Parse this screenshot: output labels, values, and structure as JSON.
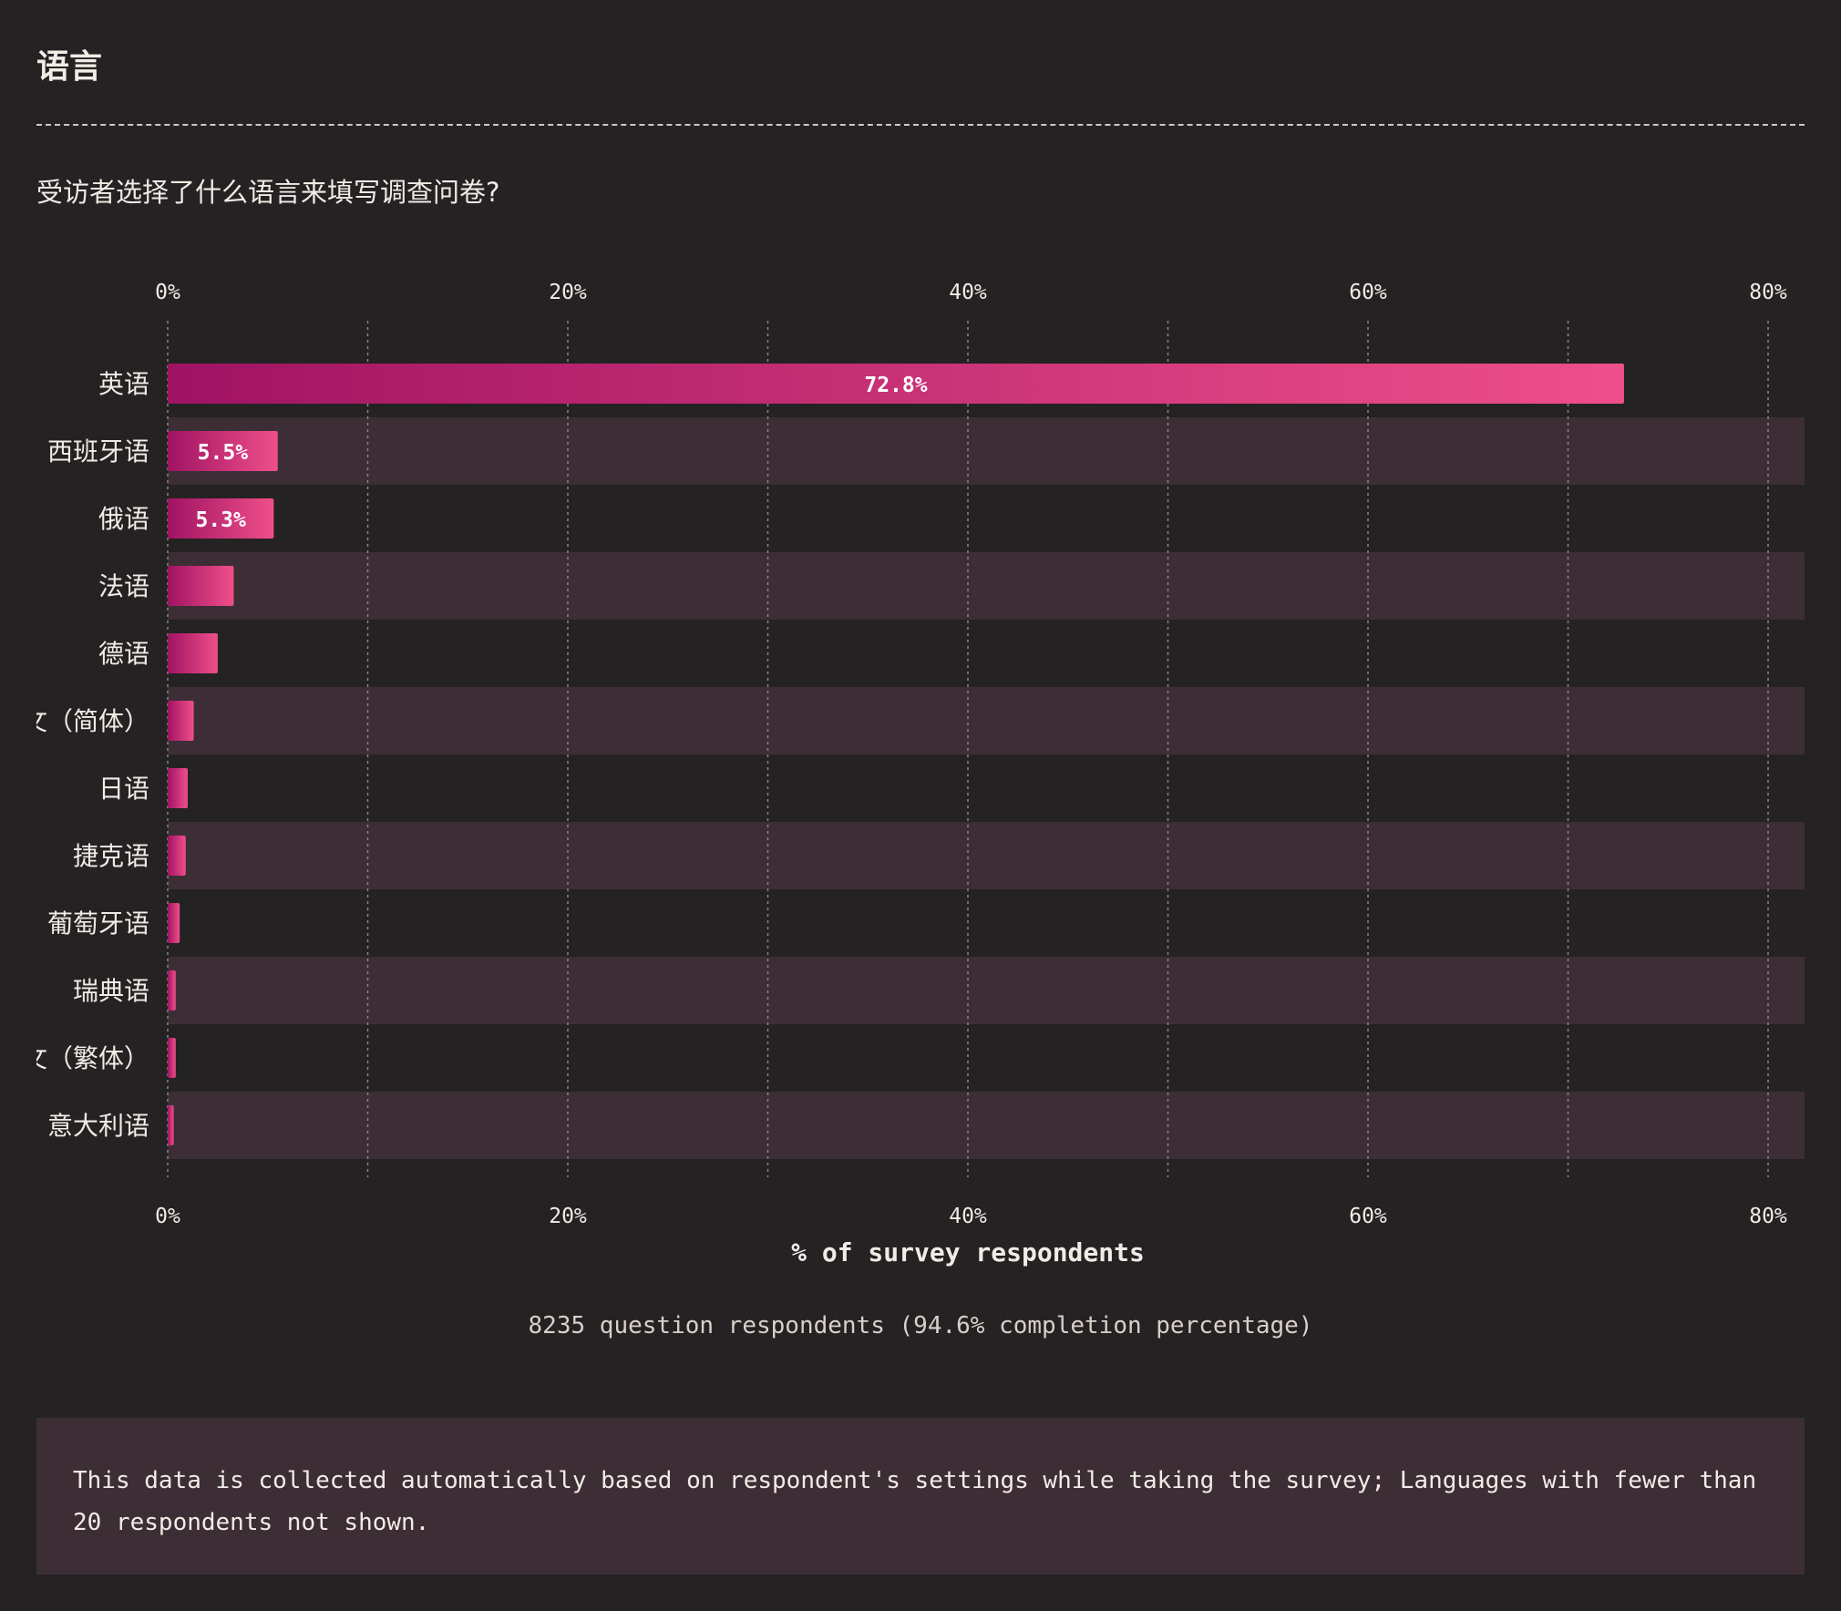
{
  "page": {
    "title": "语言",
    "question": "受访者选择了什么语言来填写调查问卷?",
    "respondents": "8235 question respondents (94.6% completion percentage)",
    "note": "This data is collected automatically based on respondent's settings while taking the survey; Languages with fewer than 20 respondents not shown."
  },
  "colors": {
    "background": "#252223",
    "band": "#3d2e36",
    "bar_start": "#a01363",
    "bar_end": "#ef4f8a",
    "text": "#f1ece6"
  },
  "chart_data": {
    "type": "bar",
    "orientation": "horizontal",
    "categories": [
      "英语",
      "西班牙语",
      "俄语",
      "法语",
      "德语",
      "中文（简体）",
      "日语",
      "捷克语",
      "葡萄牙语",
      "瑞典语",
      "中文（繁体）",
      "意大利语"
    ],
    "values": [
      72.8,
      5.5,
      5.3,
      3.3,
      2.5,
      1.3,
      1.0,
      0.9,
      0.6,
      0.4,
      0.4,
      0.3
    ],
    "data_labels": [
      "72.8%",
      "5.5%",
      "5.3%",
      "",
      "",
      "",
      "",
      "",
      "",
      "",
      "",
      ""
    ],
    "xlim": [
      0,
      80
    ],
    "ticks": [
      0,
      20,
      40,
      60,
      80
    ],
    "tick_labels": [
      "0%",
      "20%",
      "40%",
      "60%",
      "80%"
    ],
    "minor_grid": [
      10,
      30,
      50,
      70
    ],
    "xlabel": "% of survey respondents",
    "grid": true,
    "axis_labels_top_and_bottom": true
  }
}
